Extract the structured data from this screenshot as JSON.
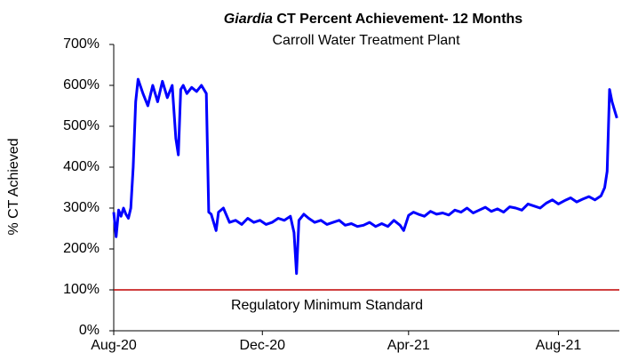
{
  "chart_data": {
    "type": "line",
    "title_italic": "Giardia",
    "title": "CT Percent Achievement- 12 Months",
    "subtitle": "Carroll  Water  Treatment  Plant",
    "y_label": "% CT  Achieved",
    "annotation": "Regulatory Minimum  Standard",
    "reference_line": {
      "value": 100,
      "color": "#c00000"
    },
    "xlim": [
      0,
      415
    ],
    "xticks": [
      {
        "value": 0,
        "label": "Aug-20"
      },
      {
        "value": 122,
        "label": "Dec-20"
      },
      {
        "value": 242,
        "label": "Apr-21"
      },
      {
        "value": 365,
        "label": "Aug-21"
      }
    ],
    "ylim": [
      0,
      700
    ],
    "yticks": [
      {
        "value": 0,
        "label": "0%"
      },
      {
        "value": 100,
        "label": "100%"
      },
      {
        "value": 200,
        "label": "200%"
      },
      {
        "value": 300,
        "label": "300%"
      },
      {
        "value": 400,
        "label": "400%"
      },
      {
        "value": 500,
        "label": "500%"
      },
      {
        "value": 600,
        "label": "600%"
      },
      {
        "value": 700,
        "label": "700%"
      }
    ],
    "series": [
      {
        "name": "CT Percent Achievement",
        "color": "#0000ff",
        "x": [
          0,
          2,
          4,
          6,
          8,
          10,
          12,
          14,
          16,
          18,
          20,
          24,
          28,
          32,
          36,
          40,
          44,
          48,
          51,
          53,
          55,
          57,
          60,
          64,
          68,
          72,
          76,
          78,
          80,
          84,
          86,
          90,
          95,
          100,
          105,
          110,
          115,
          120,
          125,
          130,
          135,
          140,
          145,
          148,
          150,
          152,
          156,
          160,
          165,
          170,
          175,
          180,
          185,
          190,
          195,
          200,
          205,
          210,
          215,
          220,
          225,
          230,
          235,
          238,
          242,
          246,
          250,
          255,
          260,
          265,
          270,
          275,
          280,
          285,
          290,
          295,
          300,
          305,
          310,
          315,
          320,
          325,
          330,
          335,
          340,
          345,
          350,
          355,
          360,
          365,
          370,
          375,
          380,
          385,
          390,
          395,
          400,
          403,
          405,
          407,
          409,
          411,
          413
        ],
        "values": [
          290,
          230,
          295,
          280,
          300,
          285,
          275,
          300,
          400,
          560,
          615,
          580,
          550,
          600,
          560,
          610,
          570,
          600,
          470,
          430,
          590,
          600,
          580,
          595,
          585,
          600,
          580,
          290,
          285,
          245,
          290,
          300,
          265,
          270,
          260,
          275,
          265,
          270,
          260,
          265,
          275,
          270,
          280,
          240,
          140,
          270,
          285,
          275,
          265,
          270,
          260,
          265,
          270,
          258,
          262,
          255,
          258,
          265,
          255,
          262,
          255,
          270,
          258,
          245,
          282,
          290,
          285,
          280,
          292,
          285,
          288,
          283,
          295,
          290,
          300,
          288,
          295,
          302,
          292,
          298,
          290,
          303,
          300,
          295,
          310,
          305,
          300,
          312,
          320,
          310,
          318,
          325,
          315,
          322,
          328,
          320,
          330,
          350,
          390,
          590,
          560,
          540,
          520
        ]
      }
    ]
  }
}
